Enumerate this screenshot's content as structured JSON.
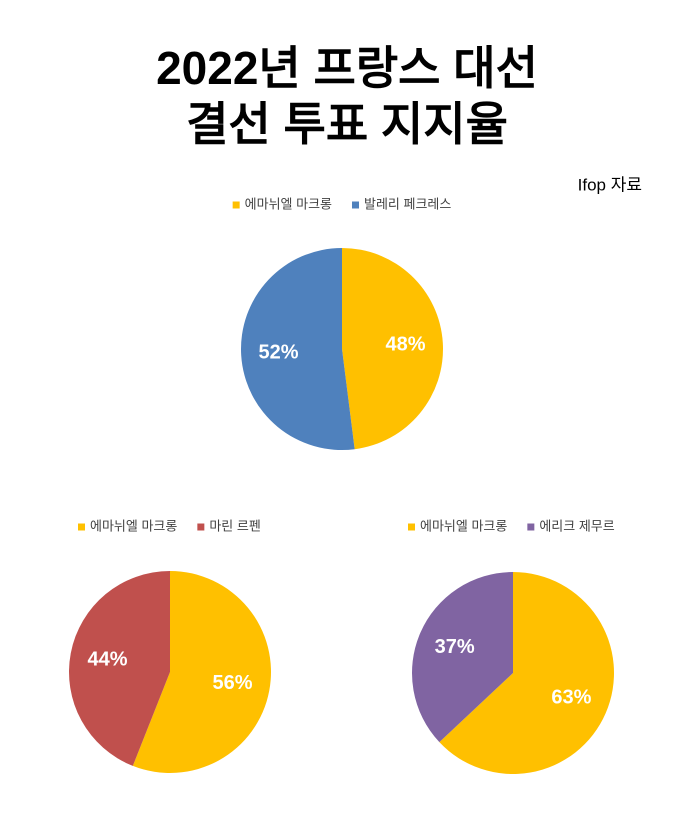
{
  "title": [
    "2022년 프랑스 대선",
    "결선 투표 지지율"
  ],
  "source": "Ifop 자료",
  "chart_data": [
    {
      "type": "pie",
      "categories": [
        "에마뉘엘 마크롱",
        "발레리 페크레스"
      ],
      "values": [
        48,
        52
      ],
      "value_labels": [
        "48%",
        "52%"
      ],
      "colors": [
        "#FFC000",
        "#4F81BD"
      ]
    },
    {
      "type": "pie",
      "categories": [
        "에마뉘엘 마크롱",
        "마린 르펜"
      ],
      "values": [
        56,
        44
      ],
      "value_labels": [
        "56%",
        "44%"
      ],
      "colors": [
        "#FFC000",
        "#C0504D"
      ]
    },
    {
      "type": "pie",
      "categories": [
        "에마뉘엘 마크롱",
        "에리크 제무르"
      ],
      "values": [
        63,
        37
      ],
      "value_labels": [
        "63%",
        "37%"
      ],
      "colors": [
        "#FFC000",
        "#8064A2"
      ]
    }
  ]
}
